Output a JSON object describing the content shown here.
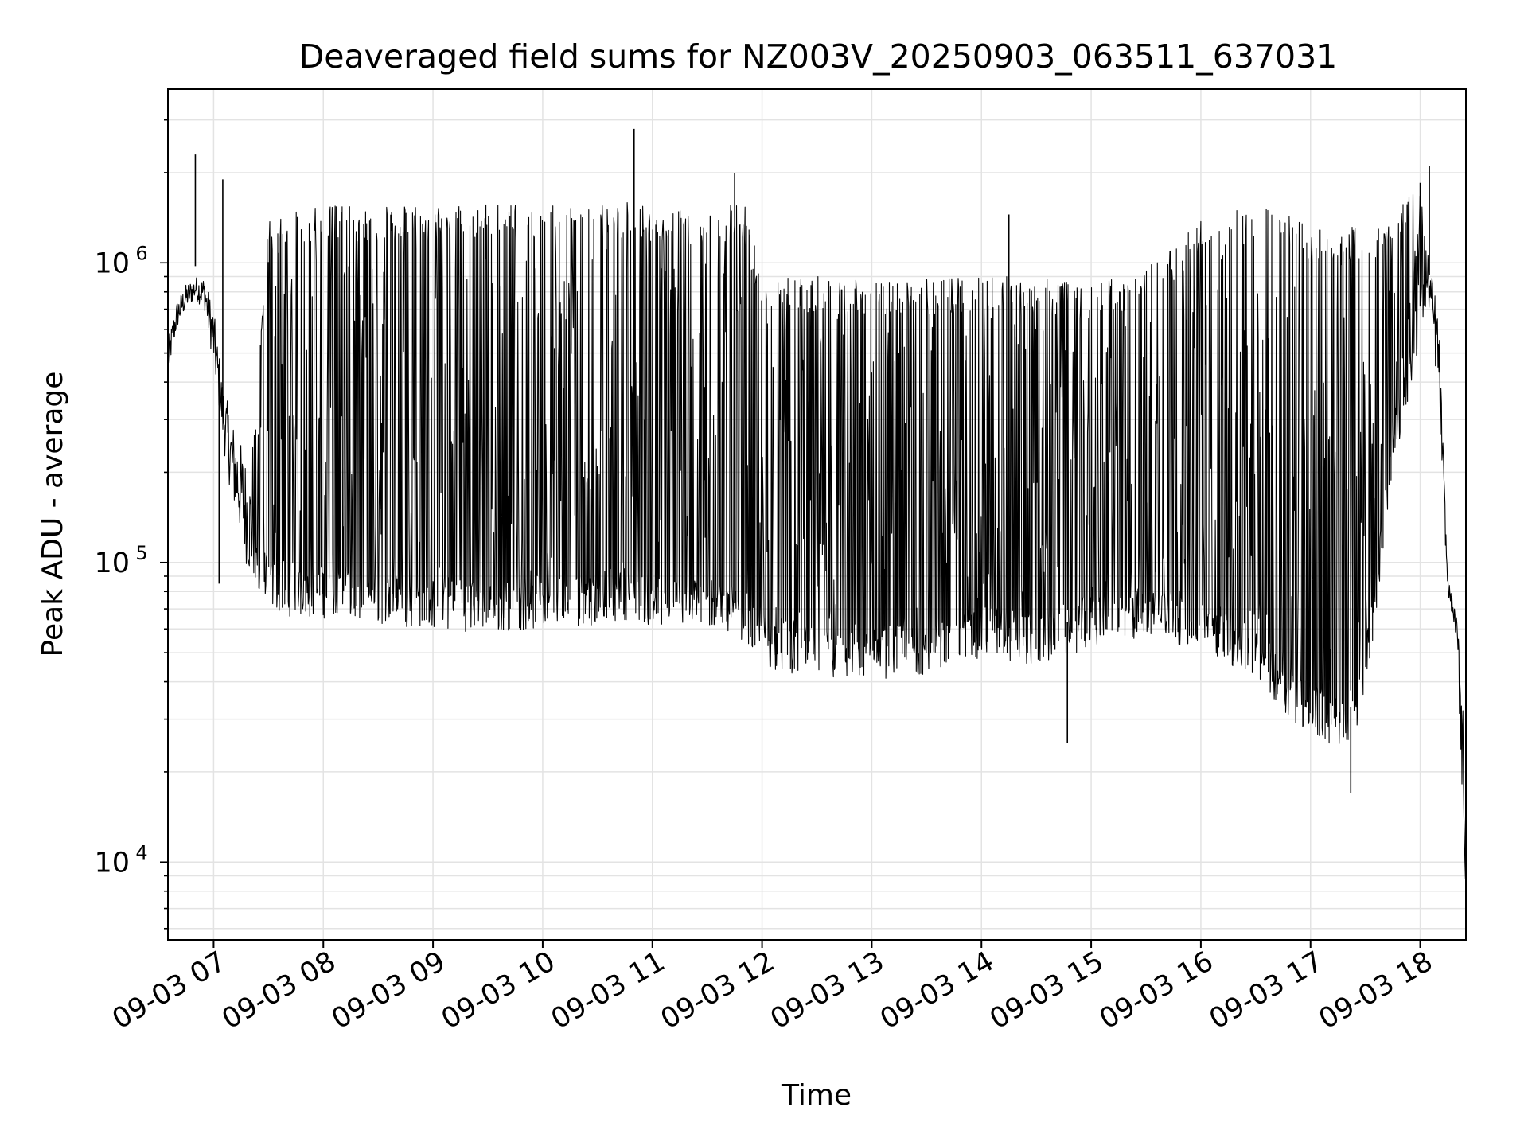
{
  "chart_data": {
    "type": "line",
    "title": "Deaveraged field sums for NZ003V_20250903_063511_637031",
    "xlabel": "Time",
    "ylabel": "Peak ADU - average",
    "yscale": "log",
    "ylim": [
      5500,
      3800000
    ],
    "xlim": [
      "09-03 06:35",
      "09-03 18:25"
    ],
    "grid": true,
    "line_color": "#000000",
    "x_ticks": [
      "09-03 07",
      "09-03 08",
      "09-03 09",
      "09-03 10",
      "09-03 11",
      "09-03 12",
      "09-03 13",
      "09-03 14",
      "09-03 15",
      "09-03 16",
      "09-03 17",
      "09-03 18"
    ],
    "y_ticks": [
      {
        "value": 10000,
        "base": "10",
        "exp": "4"
      },
      {
        "value": 100000,
        "base": "10",
        "exp": "5"
      },
      {
        "value": 1000000,
        "base": "10",
        "exp": "6"
      }
    ],
    "series": [
      {
        "x": [
          "09-03 06:35",
          "09-03 06:40",
          "09-03 06:45",
          "09-03 06:50",
          "09-03 06:55",
          "09-03 07:00",
          "09-03 07:05",
          "09-03 07:10",
          "09-03 07:15",
          "09-03 07:20",
          "09-03 07:30",
          "09-03 07:45",
          "09-03 08:00",
          "09-03 08:30",
          "09-03 09:00",
          "09-03 09:30",
          "09-03 10:00",
          "09-03 10:30",
          "09-03 10:50",
          "09-03 11:00",
          "09-03 11:30",
          "09-03 11:50",
          "09-03 12:00",
          "09-03 12:30",
          "09-03 13:00",
          "09-03 13:30",
          "09-03 14:00",
          "09-03 14:30",
          "09-03 15:00",
          "09-03 15:30",
          "09-03 16:00",
          "09-03 16:30",
          "09-03 16:45",
          "09-03 17:00",
          "09-03 17:15",
          "09-03 17:25",
          "09-03 17:35",
          "09-03 17:45",
          "09-03 18:00",
          "09-03 18:05",
          "09-03 18:10",
          "09-03 18:15",
          "09-03 18:20",
          "09-03 18:25"
        ],
        "low": [
          420000,
          600000,
          700000,
          750000,
          700000,
          450000,
          250000,
          160000,
          120000,
          85000,
          70000,
          65000,
          65000,
          62000,
          60000,
          58000,
          60000,
          62000,
          65000,
          60000,
          60000,
          55000,
          45000,
          40000,
          40000,
          42000,
          48000,
          45000,
          52000,
          55000,
          52000,
          40000,
          32000,
          26000,
          24000,
          26000,
          60000,
          200000,
          550000,
          700000,
          350000,
          80000,
          55000,
          7000
        ],
        "high": [
          550000,
          750000,
          850000,
          900000,
          900000,
          700000,
          400000,
          300000,
          250000,
          200000,
          1400000,
          1500000,
          1550000,
          1550000,
          1550000,
          1600000,
          1550000,
          1550000,
          1600000,
          1500000,
          1500000,
          1600000,
          900000,
          900000,
          900000,
          880000,
          900000,
          900000,
          850000,
          950000,
          1400000,
          1550000,
          1500000,
          1300000,
          1300000,
          1350000,
          1400000,
          1600000,
          1800000,
          1000000,
          700000,
          90000,
          65000,
          40000
        ],
        "spikes": [
          {
            "x": "09-03 06:50",
            "y": 2300000
          },
          {
            "x": "09-03 07:05",
            "y": 1900000
          },
          {
            "x": "09-03 07:03",
            "y": 85000
          },
          {
            "x": "09-03 10:50",
            "y": 2800000
          },
          {
            "x": "09-03 11:45",
            "y": 2000000
          },
          {
            "x": "09-03 14:15",
            "y": 1450000
          },
          {
            "x": "09-03 14:47",
            "y": 25000
          },
          {
            "x": "09-03 17:22",
            "y": 17000
          },
          {
            "x": "09-03 18:05",
            "y": 2100000
          },
          {
            "x": "09-03 18:00",
            "y": 1850000
          }
        ]
      }
    ]
  }
}
